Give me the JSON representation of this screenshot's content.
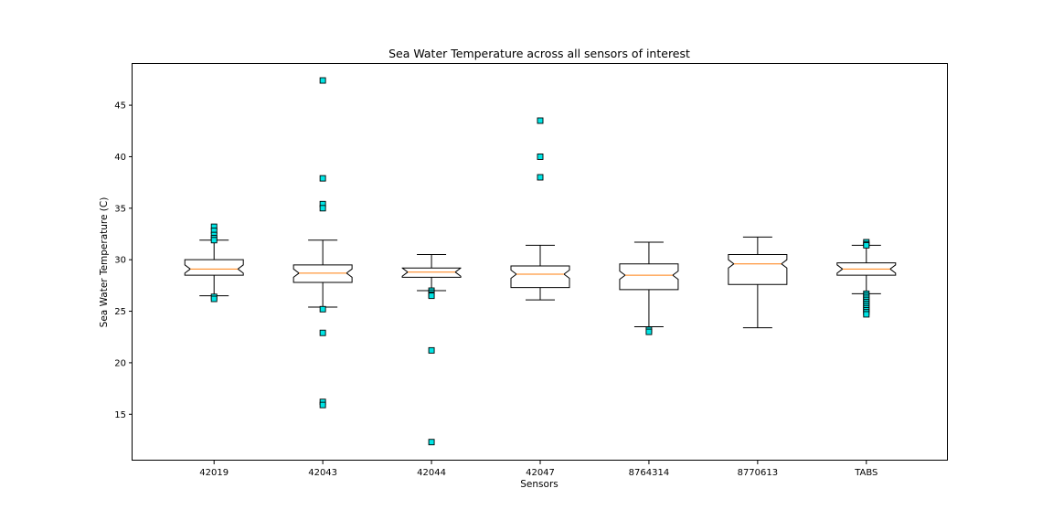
{
  "colors": {
    "box_edge": "#000000",
    "median": "#ff7f0e",
    "outlier_face": "#00e5e5",
    "outlier_edge": "#000000",
    "background": "#ffffff"
  },
  "chart_data": {
    "type": "boxplot",
    "title": "Sea Water Temperature across all sensors of interest",
    "xlabel": "Sensors",
    "ylabel": "Sea Water Temperature (C)",
    "ylim": [
      10.5,
      49.0
    ],
    "yticks": [
      15,
      20,
      25,
      30,
      35,
      40,
      45
    ],
    "notched": true,
    "grid": false,
    "legend": "none",
    "categories": [
      "42019",
      "42043",
      "42044",
      "42047",
      "8764314",
      "8770613",
      "TABS"
    ],
    "boxes": [
      {
        "name": "42019",
        "whisker_low": 26.5,
        "q1": 28.5,
        "median": 29.1,
        "q3": 30.0,
        "whisker_high": 31.9,
        "outliers": [
          33.2,
          32.8,
          32.4,
          32.1,
          31.9,
          26.4,
          26.2
        ]
      },
      {
        "name": "42043",
        "whisker_low": 25.4,
        "q1": 27.8,
        "median": 28.7,
        "q3": 29.5,
        "whisker_high": 31.9,
        "outliers": [
          47.4,
          37.9,
          35.4,
          35.0,
          25.2,
          22.9,
          16.2,
          15.9
        ]
      },
      {
        "name": "42044",
        "whisker_low": 27.0,
        "q1": 28.3,
        "median": 28.8,
        "q3": 29.2,
        "whisker_high": 30.5,
        "outliers": [
          27.0,
          26.8,
          26.6,
          26.5,
          21.2,
          12.3
        ]
      },
      {
        "name": "42047",
        "whisker_low": 26.1,
        "q1": 27.3,
        "median": 28.6,
        "q3": 29.4,
        "whisker_high": 31.4,
        "outliers": [
          43.5,
          40.0,
          38.0
        ]
      },
      {
        "name": "8764314",
        "whisker_low": 23.5,
        "q1": 27.1,
        "median": 28.5,
        "q3": 29.6,
        "whisker_high": 31.7,
        "outliers": [
          23.2,
          23.0
        ]
      },
      {
        "name": "8770613",
        "whisker_low": 23.4,
        "q1": 27.6,
        "median": 29.6,
        "q3": 30.5,
        "whisker_high": 32.2,
        "outliers": []
      },
      {
        "name": "TABS",
        "whisker_low": 26.7,
        "q1": 28.5,
        "median": 29.1,
        "q3": 29.7,
        "whisker_high": 31.4,
        "outliers": [
          31.7,
          31.5,
          31.4,
          26.7,
          26.5,
          26.3,
          26.1,
          25.9,
          25.7,
          25.5,
          25.3,
          25.1,
          24.9,
          24.7
        ]
      }
    ]
  }
}
